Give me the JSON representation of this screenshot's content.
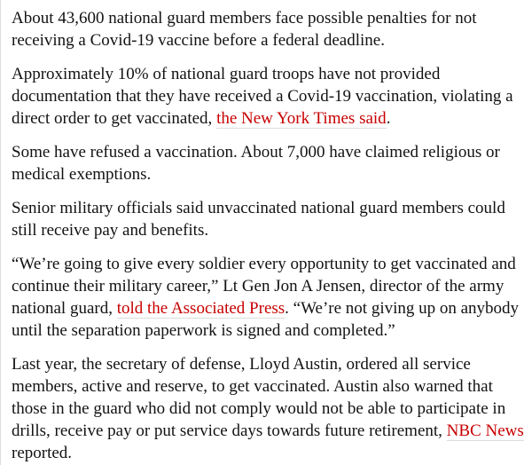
{
  "colors": {
    "background": "#ffffff",
    "text": "#121212",
    "link": "#c70000",
    "link_underline": "#dcdcdc",
    "left_border": "#dcdcdc"
  },
  "article": {
    "paragraphs": [
      {
        "segments": [
          {
            "type": "text",
            "text": "About 43,600 national guard members face possible penalties for not receiving a Covid-19 vaccine before a federal deadline."
          }
        ]
      },
      {
        "segments": [
          {
            "type": "text",
            "text": "Approximately 10% of national guard troops have not provided documentation that they have received a Covid-19 vaccination, violating a direct order to get vaccinated, "
          },
          {
            "type": "link",
            "text": "the New York Times said"
          },
          {
            "type": "text",
            "text": "."
          }
        ]
      },
      {
        "segments": [
          {
            "type": "text",
            "text": "Some have refused a vaccination. About 7,000 have claimed religious or medical exemptions."
          }
        ]
      },
      {
        "segments": [
          {
            "type": "text",
            "text": "Senior military officials said unvaccinated national guard members could still receive pay and benefits."
          }
        ]
      },
      {
        "segments": [
          {
            "type": "text",
            "text": "“We’re going to give every soldier every opportunity to get vaccinated and continue their military career,” Lt Gen Jon A Jensen, director of the army national guard, "
          },
          {
            "type": "link",
            "text": "told the Associated Press"
          },
          {
            "type": "text",
            "text": ". “We’re not giving up on anybody until the separation paperwork is signed and completed.”"
          }
        ]
      },
      {
        "segments": [
          {
            "type": "text",
            "text": "Last year, the secretary of defense, Lloyd Austin, ordered all service members, active and reserve, to get vaccinated. Austin also warned that those in the guard who did not comply would not be able to participate in drills, receive pay or put service days towards future retirement, "
          },
          {
            "type": "link",
            "text": "NBC News"
          },
          {
            "type": "text",
            "text": " reported."
          }
        ]
      }
    ]
  }
}
